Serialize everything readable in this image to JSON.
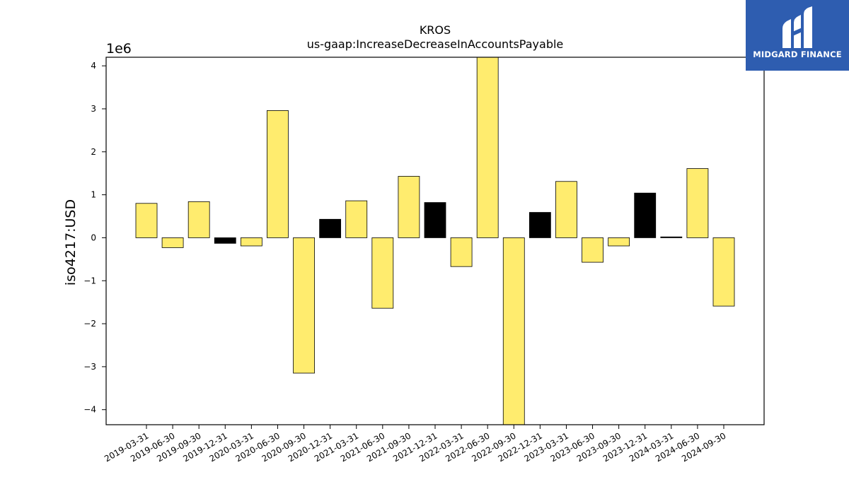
{
  "chart_data": {
    "type": "bar",
    "title": "KROS",
    "subtitle": "us-gaap:IncreaseDecreaseInAccountsPayable",
    "xlabel": "",
    "ylabel": "iso4217:USD",
    "y_scale_label": "1e6",
    "ylim": [
      -4.35,
      4.2
    ],
    "yticks": [
      -4,
      -3,
      -2,
      -1,
      0,
      1,
      2,
      3,
      4
    ],
    "ytick_labels": [
      "−4",
      "−3",
      "−2",
      "−1",
      "0",
      "1",
      "2",
      "3",
      "4"
    ],
    "grid": false,
    "categories": [
      "2019-03-31",
      "2019-06-30",
      "2019-09-30",
      "2019-12-31",
      "2020-03-31",
      "2020-06-30",
      "2020-09-30",
      "2020-12-31",
      "2021-03-31",
      "2021-06-30",
      "2021-09-30",
      "2021-12-31",
      "2022-03-31",
      "2022-06-30",
      "2022-09-30",
      "2022-12-31",
      "2023-03-31",
      "2023-06-30",
      "2023-09-30",
      "2023-12-31",
      "2024-03-31",
      "2024-06-30",
      "2024-09-30"
    ],
    "values": [
      0.8,
      -0.23,
      0.84,
      -0.13,
      -0.19,
      2.96,
      -3.15,
      0.43,
      0.86,
      -1.64,
      1.43,
      0.82,
      -0.67,
      4.2,
      -4.35,
      0.59,
      1.31,
      -0.57,
      -0.19,
      1.04,
      0.02,
      1.61,
      -1.59
    ],
    "bar_colors": [
      "#ffec6e",
      "#ffec6e",
      "#ffec6e",
      "#000000",
      "#ffec6e",
      "#ffec6e",
      "#ffec6e",
      "#000000",
      "#ffec6e",
      "#ffec6e",
      "#ffec6e",
      "#000000",
      "#ffec6e",
      "#ffec6e",
      "#ffec6e",
      "#000000",
      "#ffec6e",
      "#ffec6e",
      "#ffec6e",
      "#000000",
      "#000000",
      "#ffec6e",
      "#ffec6e"
    ],
    "colors": {
      "highlight": "#ffec6e",
      "annual": "#000000",
      "edge": "#000000"
    }
  },
  "logo": {
    "text": "MIDGARD FINANCE",
    "background": "#2e5db0",
    "icon": "midgard-logo-icon"
  }
}
